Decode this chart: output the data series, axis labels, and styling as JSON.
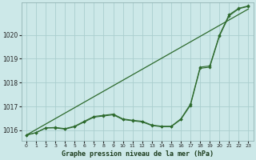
{
  "x": [
    0,
    1,
    2,
    3,
    4,
    5,
    6,
    7,
    8,
    9,
    10,
    11,
    12,
    13,
    14,
    15,
    16,
    17,
    18,
    19,
    20,
    21,
    22,
    23
  ],
  "line_straight": [
    1015.8,
    1016.03,
    1016.26,
    1016.49,
    1016.72,
    1016.95,
    1017.18,
    1017.41,
    1017.64,
    1017.87,
    1018.1,
    1018.33,
    1018.56,
    1018.79,
    1019.02,
    1019.25,
    1019.48,
    1019.71,
    1019.94,
    1020.17,
    1020.4,
    1020.63,
    1020.86,
    1021.09
  ],
  "line_wavy": [
    1015.8,
    1015.9,
    1016.1,
    1016.1,
    1016.05,
    1016.15,
    1016.35,
    1016.55,
    1016.6,
    1016.65,
    1016.45,
    1016.4,
    1016.35,
    1016.2,
    1016.15,
    1016.15,
    1016.45,
    1017.05,
    1018.6,
    1018.65,
    1019.95,
    1020.8,
    1021.1,
    1021.2
  ],
  "line_wavy2": [
    1015.8,
    1015.9,
    1016.1,
    1016.12,
    1016.07,
    1016.17,
    1016.38,
    1016.58,
    1016.63,
    1016.68,
    1016.48,
    1016.42,
    1016.38,
    1016.22,
    1016.17,
    1016.17,
    1016.48,
    1017.1,
    1018.65,
    1018.7,
    1020.0,
    1020.85,
    1021.12,
    1021.22
  ],
  "line_color": "#2d6a2d",
  "bg_color": "#cce8e8",
  "grid_color": "#aacece",
  "ylabel_ticks": [
    1016,
    1017,
    1018,
    1019,
    1020
  ],
  "xlabel": "Graphe pression niveau de la mer (hPa)",
  "ylim": [
    1015.55,
    1021.35
  ],
  "xlim": [
    -0.5,
    23.5
  ]
}
